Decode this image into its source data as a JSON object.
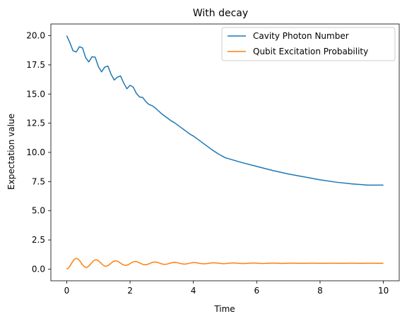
{
  "chart_data": {
    "type": "line",
    "title": "With decay",
    "xlabel": "Time",
    "ylabel": "Expectation value",
    "xlim": [
      -0.5,
      10.5
    ],
    "ylim": [
      -1.0,
      21.0
    ],
    "xticks": [
      0,
      2,
      4,
      6,
      8,
      10
    ],
    "xtick_labels": [
      "0",
      "2",
      "4",
      "6",
      "8",
      "10"
    ],
    "yticks": [
      0.0,
      2.5,
      5.0,
      7.5,
      10.0,
      12.5,
      15.0,
      17.5,
      20.0
    ],
    "ytick_labels": [
      "0.0",
      "2.5",
      "5.0",
      "7.5",
      "10.0",
      "12.5",
      "15.0",
      "17.5",
      "20.0"
    ],
    "grid": false,
    "legend_position": "upper right",
    "series": [
      {
        "name": "Cavity Photon Number",
        "color": "#1f77b4",
        "x": [
          0.0,
          0.1,
          0.2,
          0.3,
          0.4,
          0.5,
          0.6,
          0.7,
          0.8,
          0.9,
          1.0,
          1.1,
          1.2,
          1.3,
          1.4,
          1.5,
          1.6,
          1.7,
          1.8,
          1.9,
          2.0,
          2.1,
          2.2,
          2.3,
          2.4,
          2.5,
          2.6,
          2.7,
          2.8,
          2.9,
          3.0,
          3.1,
          3.2,
          3.3,
          3.4,
          3.5,
          3.6,
          3.7,
          3.8,
          3.9,
          4.0,
          4.2,
          4.4,
          4.6,
          4.8,
          5.0,
          5.5,
          6.0,
          6.5,
          7.0,
          7.5,
          8.0,
          8.5,
          9.0,
          9.5,
          10.0
        ],
        "y": [
          20.0,
          19.4,
          18.7,
          18.6,
          19.05,
          18.95,
          18.1,
          17.75,
          18.2,
          18.15,
          17.35,
          16.9,
          17.3,
          17.4,
          16.7,
          16.2,
          16.45,
          16.55,
          15.95,
          15.45,
          15.75,
          15.6,
          15.05,
          14.75,
          14.7,
          14.35,
          14.1,
          14.0,
          13.8,
          13.55,
          13.3,
          13.1,
          12.9,
          12.7,
          12.55,
          12.35,
          12.15,
          11.95,
          11.75,
          11.55,
          11.4,
          11.0,
          10.6,
          10.2,
          9.85,
          9.55,
          9.15,
          8.8,
          8.45,
          8.15,
          7.9,
          7.65,
          7.45,
          7.3,
          7.2,
          7.2
        ]
      },
      {
        "name": "Qubit Excitation Probability",
        "color": "#ff7f0e",
        "x": [],
        "y": []
      }
    ]
  }
}
